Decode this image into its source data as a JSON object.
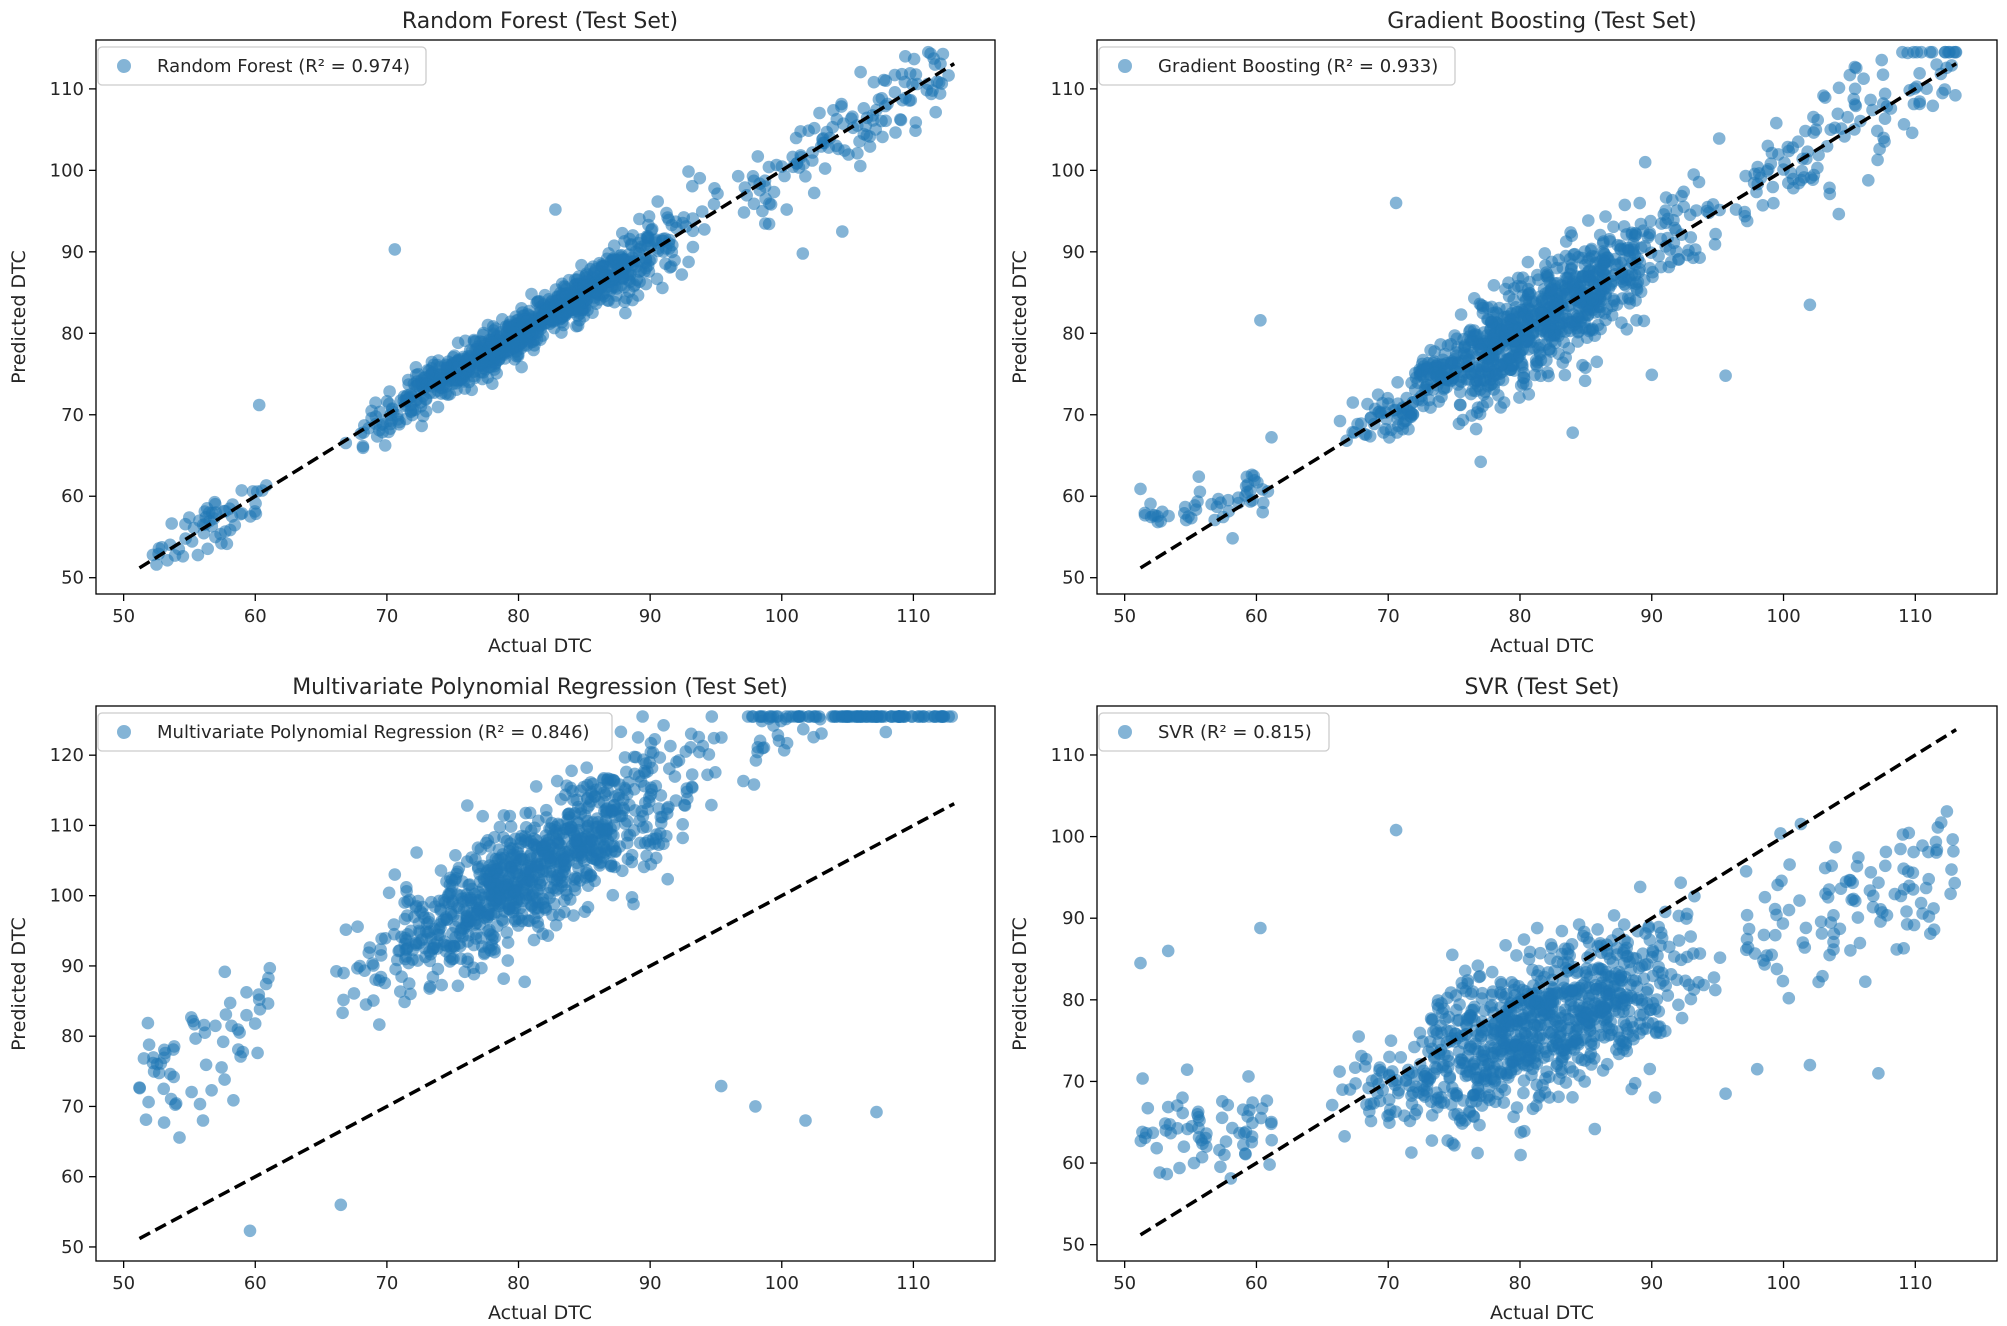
{
  "chart_data": [
    {
      "type": "scatter",
      "title": "Random Forest (Test Set)",
      "xlabel": "Actual DTC",
      "ylabel": "Predicted DTC",
      "xlim": [
        47.9,
        116.2
      ],
      "ylim": [
        48.0,
        116.0
      ],
      "xticks": [
        50,
        60,
        70,
        80,
        90,
        100,
        110
      ],
      "yticks": [
        50,
        60,
        70,
        80,
        90,
        100,
        110
      ],
      "grid": false,
      "legend_position": "upper-left",
      "legend_label": "Random Forest (R² = 0.974)",
      "r2": 0.974,
      "point_color": "#1f77b4",
      "ideal_line": {
        "from": [
          51.2,
          51.2
        ],
        "to": [
          113.1,
          113.1
        ],
        "style": "dashed",
        "color": "#000000"
      },
      "noise_sd": 2.0,
      "n_points": 1100,
      "outliers": [
        [
          60.3,
          71.2
        ],
        [
          70.6,
          90.3
        ],
        [
          104.6,
          92.5
        ],
        [
          107.9,
          111.0
        ],
        [
          82.8,
          95.2
        ],
        [
          101.6,
          89.8
        ]
      ]
    },
    {
      "type": "scatter",
      "title": "Gradient Boosting (Test Set)",
      "xlabel": "Actual DTC",
      "ylabel": "Predicted DTC",
      "xlim": [
        47.9,
        116.2
      ],
      "ylim": [
        48.0,
        116.0
      ],
      "xticks": [
        50,
        60,
        70,
        80,
        90,
        100,
        110
      ],
      "yticks": [
        50,
        60,
        70,
        80,
        90,
        100,
        110
      ],
      "grid": false,
      "legend_position": "upper-left",
      "legend_label": "Gradient Boosting (R² = 0.933)",
      "r2": 0.933,
      "point_color": "#1f77b4",
      "ideal_line": {
        "from": [
          51.2,
          51.2
        ],
        "to": [
          113.1,
          113.1
        ],
        "style": "dashed",
        "color": "#000000"
      },
      "noise_sd": 3.2,
      "n_points": 1100,
      "outliers": [
        [
          70.6,
          96.0
        ],
        [
          60.3,
          81.6
        ],
        [
          51.2,
          60.9
        ],
        [
          102.0,
          83.5
        ],
        [
          95.6,
          74.8
        ],
        [
          90.0,
          74.9
        ],
        [
          84.0,
          67.8
        ],
        [
          89.5,
          101.0
        ]
      ]
    },
    {
      "type": "scatter",
      "title": "Multivariate Polynomial Regression (Test Set)",
      "xlabel": "Actual DTC",
      "ylabel": "Predicted DTC",
      "xlim": [
        47.9,
        116.2
      ],
      "ylim": [
        48.0,
        127.0
      ],
      "xticks": [
        50,
        60,
        70,
        80,
        90,
        100,
        110
      ],
      "yticks": [
        50,
        60,
        70,
        80,
        90,
        100,
        110,
        120
      ],
      "grid": false,
      "legend_position": "upper-left",
      "legend_label": "Multivariate Polynomial Regression (R² = 0.846)",
      "r2": 0.846,
      "point_color": "#1f77b4",
      "ideal_line": {
        "from": [
          51.2,
          51.2
        ],
        "to": [
          113.1,
          113.1
        ],
        "style": "dashed",
        "color": "#000000"
      },
      "noise_sd": 4.6,
      "n_points": 1100,
      "outliers": [
        [
          70.6,
          103.0
        ],
        [
          60.3,
          85.2
        ],
        [
          59.6,
          52.3
        ],
        [
          66.5,
          56.0
        ],
        [
          107.9,
          123.3
        ],
        [
          101.8,
          68.0
        ],
        [
          107.2,
          69.2
        ],
        [
          98.0,
          70.0
        ],
        [
          95.4,
          72.9
        ]
      ]
    },
    {
      "type": "scatter",
      "title": "SVR (Test Set)",
      "xlabel": "Actual DTC",
      "ylabel": "Predicted DTC",
      "xlim": [
        47.9,
        116.2
      ],
      "ylim": [
        48.0,
        116.0
      ],
      "xticks": [
        50,
        60,
        70,
        80,
        90,
        100,
        110
      ],
      "yticks": [
        50,
        60,
        70,
        80,
        90,
        100,
        110
      ],
      "grid": false,
      "legend_position": "upper-left",
      "legend_label": "SVR (R² = 0.815)",
      "r2": 0.815,
      "point_color": "#1f77b4",
      "ideal_line": {
        "from": [
          51.2,
          51.2
        ],
        "to": [
          113.1,
          113.1
        ],
        "style": "dashed",
        "color": "#000000"
      },
      "noise_sd": 4.8,
      "n_points": 1100,
      "outliers": [
        [
          70.6,
          100.8
        ],
        [
          51.2,
          84.5
        ],
        [
          53.3,
          86.0
        ],
        [
          60.3,
          88.8
        ],
        [
          107.2,
          71.0
        ],
        [
          102.0,
          72.0
        ],
        [
          98.0,
          71.5
        ],
        [
          95.6,
          68.5
        ],
        [
          100.4,
          80.2
        ]
      ]
    }
  ]
}
